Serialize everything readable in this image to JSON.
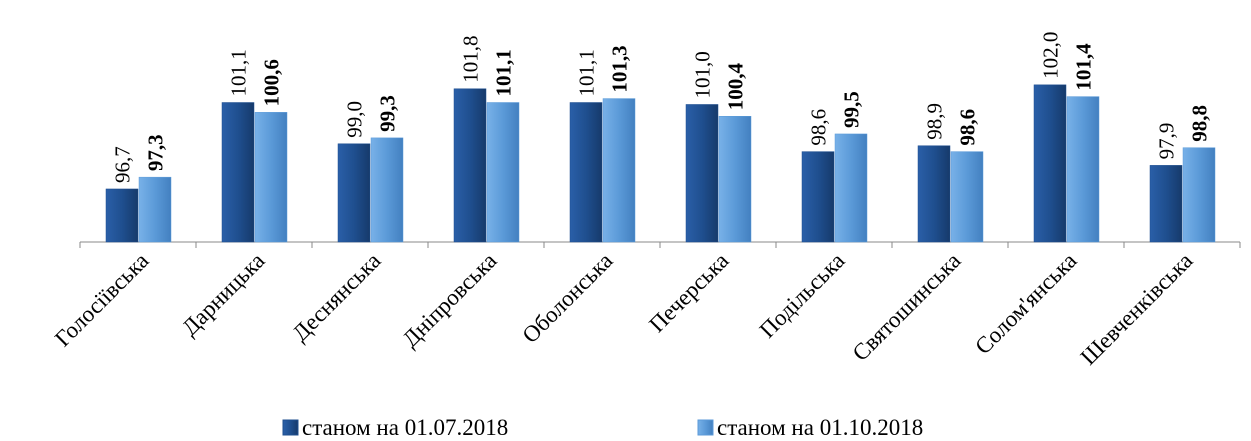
{
  "chart_data": {
    "type": "bar",
    "categories": [
      "Голосіївська",
      "Дарницька",
      "Деснянська",
      "Дніпровська",
      "Оболонська",
      "Печерська",
      "Подільська",
      "Святошинська",
      "Солом'янська",
      "Шевченківська"
    ],
    "series": [
      {
        "name": "станом на 01.07.2018",
        "color": "#1f4f8f",
        "values": [
          96.7,
          101.1,
          99.0,
          101.8,
          101.1,
          101.0,
          98.6,
          98.9,
          102.0,
          97.9
        ],
        "value_labels": [
          "96,7",
          "101,1",
          "99,0",
          "101,8",
          "101,1",
          "101,0",
          "98,6",
          "98,9",
          "102,0",
          "97,9"
        ]
      },
      {
        "name": "станом на 01.10.2018",
        "color": "#5b9ad8",
        "values": [
          97.3,
          100.6,
          99.3,
          101.1,
          101.3,
          100.4,
          99.5,
          98.6,
          101.4,
          98.8
        ],
        "value_labels": [
          "97,3",
          "100,6",
          "99,3",
          "101,1",
          "101,3",
          "100,4",
          "99,5",
          "98,6",
          "101,4",
          "98,8"
        ]
      }
    ],
    "ylim": [
      94,
      102.5
    ],
    "legend": "bottom"
  }
}
